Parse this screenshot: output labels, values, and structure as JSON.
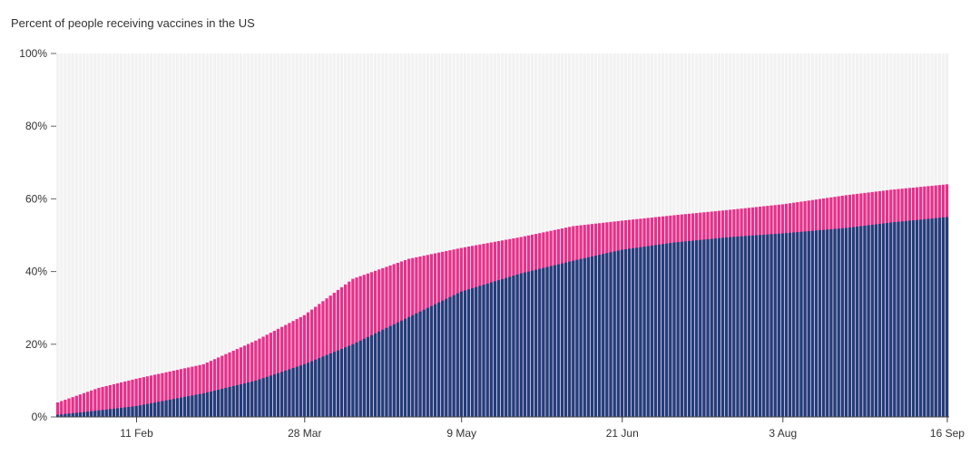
{
  "chart_data": {
    "type": "bar",
    "stacked": true,
    "title": "Percent of people receiving vaccines in the US",
    "xlabel": "",
    "ylabel": "",
    "ylim": [
      0,
      100
    ],
    "y_ticks": [
      "0%",
      "20%",
      "40%",
      "60%",
      "80%",
      "100%"
    ],
    "y_tick_values": [
      0,
      20,
      40,
      60,
      80,
      100
    ],
    "x_ticks": [
      "11 Feb",
      "28 Mar",
      "9 May",
      "21 Jun",
      "3 Aug",
      "16 Sep"
    ],
    "x_tick_dates": [
      "2021-02-11",
      "2021-03-28",
      "2021-05-09",
      "2021-06-21",
      "2021-08-03",
      "2021-09-16"
    ],
    "x_range": [
      "2021-01-21",
      "2021-09-16"
    ],
    "background_band_color": "#f2f2f2",
    "grid": false,
    "legend": "none",
    "series": [
      {
        "color": "#1f3f7c",
        "points": [
          [
            "2021-01-21",
            0.6
          ],
          [
            "2021-02-01",
            1.8
          ],
          [
            "2021-02-11",
            3.0
          ],
          [
            "2021-03-01",
            6.5
          ],
          [
            "2021-03-15",
            10.0
          ],
          [
            "2021-03-28",
            14.5
          ],
          [
            "2021-04-10",
            20.0
          ],
          [
            "2021-04-25",
            27.5
          ],
          [
            "2021-05-09",
            34.5
          ],
          [
            "2021-05-25",
            39.5
          ],
          [
            "2021-06-08",
            43.0
          ],
          [
            "2021-06-21",
            46.0
          ],
          [
            "2021-07-05",
            48.0
          ],
          [
            "2021-07-20",
            49.5
          ],
          [
            "2021-08-03",
            50.5
          ],
          [
            "2021-08-20",
            52.0
          ],
          [
            "2021-09-01",
            53.5
          ],
          [
            "2021-09-16",
            55.0
          ]
        ]
      },
      {
        "color": "#e8308a",
        "points": [
          [
            "2021-01-21",
            4.0
          ],
          [
            "2021-02-01",
            8.0
          ],
          [
            "2021-02-11",
            10.5
          ],
          [
            "2021-03-01",
            14.5
          ],
          [
            "2021-03-15",
            21.0
          ],
          [
            "2021-03-28",
            28.0
          ],
          [
            "2021-04-10",
            38.0
          ],
          [
            "2021-04-25",
            43.5
          ],
          [
            "2021-05-09",
            46.5
          ],
          [
            "2021-05-25",
            49.5
          ],
          [
            "2021-06-08",
            52.5
          ],
          [
            "2021-06-21",
            54.0
          ],
          [
            "2021-07-05",
            55.5
          ],
          [
            "2021-07-20",
            57.0
          ],
          [
            "2021-08-03",
            58.5
          ],
          [
            "2021-08-20",
            61.0
          ],
          [
            "2021-09-01",
            62.5
          ],
          [
            "2021-09-16",
            64.0
          ]
        ]
      }
    ]
  }
}
